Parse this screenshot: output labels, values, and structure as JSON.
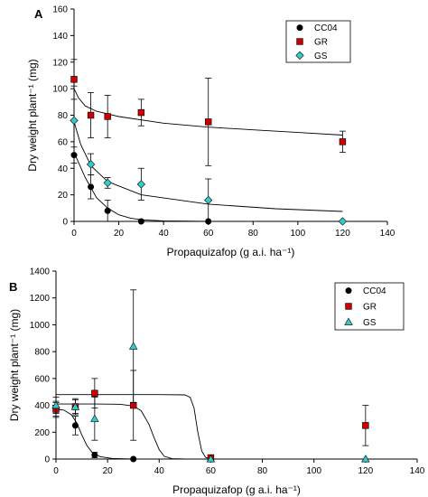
{
  "chart_data": [
    {
      "panel": "A",
      "type": "scatter",
      "xlabel": "Propaquizafop (g a.i. ha⁻¹)",
      "ylabel": "Dry weight plant⁻¹ (mg)",
      "xlim": [
        0,
        140
      ],
      "ylim": [
        0,
        160
      ],
      "xticks": [
        0,
        20,
        40,
        60,
        80,
        100,
        120,
        140
      ],
      "yticks": [
        0,
        20,
        40,
        60,
        80,
        100,
        120,
        140,
        160
      ],
      "grid": false,
      "legend_position": "top-right",
      "series": [
        {
          "name": "CC04",
          "marker": "circle",
          "color": "#000000",
          "x": [
            0,
            7.5,
            15,
            30,
            60
          ],
          "y": [
            50,
            26,
            8,
            0,
            0
          ],
          "err": [
            6,
            9,
            8,
            1,
            0
          ],
          "fit": [
            [
              0,
              52
            ],
            [
              5,
              33
            ],
            [
              10,
              18
            ],
            [
              15,
              10
            ],
            [
              20,
              5
            ],
            [
              25,
              2.5
            ],
            [
              30,
              1.2
            ],
            [
              40,
              0.4
            ],
            [
              60,
              0
            ]
          ]
        },
        {
          "name": "GR",
          "marker": "square",
          "color": "#cc0000",
          "x": [
            0,
            7.5,
            15,
            30,
            60,
            120
          ],
          "y": [
            107,
            80,
            79,
            82,
            75,
            60
          ],
          "err": [
            15,
            17,
            16,
            10,
            33,
            8
          ],
          "fit": [
            [
              0,
              100
            ],
            [
              2,
              93
            ],
            [
              5,
              87
            ],
            [
              10,
              83
            ],
            [
              20,
              79
            ],
            [
              40,
              74
            ],
            [
              60,
              71
            ],
            [
              80,
              69
            ],
            [
              100,
              67
            ],
            [
              120,
              65
            ]
          ]
        },
        {
          "name": "GS",
          "marker": "diamond",
          "color": "#33cccc",
          "x": [
            0,
            7.5,
            15,
            30,
            60,
            120
          ],
          "y": [
            76,
            43,
            29,
            28,
            16,
            0
          ],
          "err": [
            26,
            8,
            4,
            12,
            16,
            0
          ],
          "fit": [
            [
              0,
              75
            ],
            [
              3,
              58
            ],
            [
              7.5,
              42
            ],
            [
              15,
              30
            ],
            [
              30,
              20
            ],
            [
              60,
              13
            ],
            [
              90,
              9.5
            ],
            [
              120,
              7.5
            ]
          ]
        }
      ]
    },
    {
      "panel": "B",
      "type": "scatter",
      "xlabel": "Propaquizafop (g a.i. ha⁻¹)",
      "ylabel": "Dry weight plant⁻¹ (mg)",
      "xlim": [
        0,
        140
      ],
      "ylim": [
        0,
        1400
      ],
      "xticks": [
        0,
        20,
        40,
        60,
        80,
        100,
        120,
        140
      ],
      "yticks": [
        0,
        200,
        400,
        600,
        800,
        1000,
        1200,
        1400
      ],
      "grid": false,
      "legend_position": "top-right",
      "series": [
        {
          "name": "CC04",
          "marker": "circle",
          "color": "#000000",
          "x": [
            0,
            7.5,
            15,
            30,
            60
          ],
          "y": [
            370,
            250,
            30,
            0,
            10
          ],
          "err": [
            60,
            70,
            20,
            0,
            15
          ],
          "fit": [
            [
              0,
              370
            ],
            [
              3,
              365
            ],
            [
              6,
              330
            ],
            [
              8,
              270
            ],
            [
              10,
              180
            ],
            [
              12,
              100
            ],
            [
              14,
              50
            ],
            [
              17,
              18
            ],
            [
              22,
              4
            ],
            [
              30,
              0
            ]
          ]
        },
        {
          "name": "GR",
          "marker": "square",
          "color": "#cc0000",
          "x": [
            0,
            7.5,
            15,
            30,
            60,
            120
          ],
          "y": [
            370,
            390,
            490,
            400,
            10,
            250
          ],
          "err": [
            50,
            60,
            110,
            260,
            15,
            150
          ],
          "fit": [
            [
              0,
              480
            ],
            [
              20,
              480
            ],
            [
              40,
              480
            ],
            [
              50,
              478
            ],
            [
              52,
              460
            ],
            [
              53.5,
              380
            ],
            [
              55,
              200
            ],
            [
              56.5,
              60
            ],
            [
              58,
              12
            ],
            [
              60,
              0
            ]
          ]
        },
        {
          "name": "GS",
          "marker": "triangle",
          "color": "#33cccc",
          "x": [
            0,
            7.5,
            15,
            30,
            60,
            120
          ],
          "y": [
            400,
            390,
            300,
            840,
            0,
            0
          ],
          "err": [
            60,
            50,
            160,
            420,
            0,
            0
          ],
          "fit": [
            [
              0,
              410
            ],
            [
              15,
              410
            ],
            [
              25,
              408
            ],
            [
              30,
              395
            ],
            [
              33,
              360
            ],
            [
              36,
              260
            ],
            [
              38,
              160
            ],
            [
              40,
              70
            ],
            [
              42,
              20
            ],
            [
              45,
              3
            ],
            [
              50,
              0
            ]
          ]
        }
      ]
    }
  ]
}
